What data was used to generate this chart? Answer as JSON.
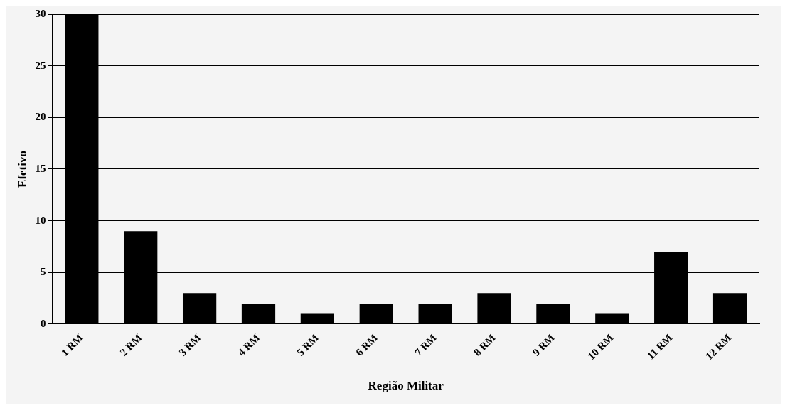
{
  "chart_data": {
    "type": "bar",
    "xlabel": "Região Militar",
    "ylabel": "Efetivo",
    "categories": [
      "1 RM",
      "2 RM",
      "3 RM",
      "4 RM",
      "5 RM",
      "6 RM",
      "7 RM",
      "8 RM",
      "9 RM",
      "10 RM",
      "11 RM",
      "12 RM"
    ],
    "values": [
      30,
      9,
      3,
      2,
      1,
      2,
      2,
      3,
      2,
      1,
      7,
      3
    ],
    "color": "#000000",
    "ylim": [
      0,
      30
    ],
    "yticks": [
      0,
      5,
      10,
      15,
      20,
      25,
      30
    ],
    "grid": "y",
    "legend": false
  }
}
